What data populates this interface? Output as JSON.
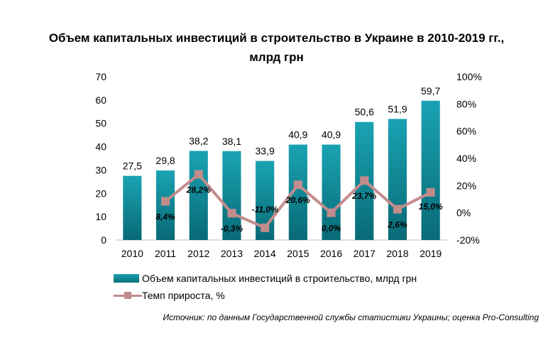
{
  "title": {
    "line1": "Объем капитальных инвестиций в строительство в Украине в 2010-2019 гг.,",
    "line2": "млрд грн"
  },
  "chart_data": {
    "type": "bar",
    "categories": [
      "2010",
      "2011",
      "2012",
      "2013",
      "2014",
      "2015",
      "2016",
      "2017",
      "2018",
      "2019"
    ],
    "series": [
      {
        "name": "Объем капитальных  инвестиций  в строительство, млрд грн",
        "type": "bar",
        "axis": "left",
        "values": [
          27.5,
          29.8,
          38.2,
          38.1,
          33.9,
          40.9,
          40.9,
          50.6,
          51.9,
          59.7
        ],
        "labels": [
          "27,5",
          "29,8",
          "38,2",
          "38,1",
          "33,9",
          "40,9",
          "40,9",
          "50,6",
          "51,9",
          "59,7"
        ],
        "color": "#0f8a98"
      },
      {
        "name": "Темп прироста, %",
        "type": "line",
        "axis": "right",
        "values": [
          8.4,
          28.2,
          -0.3,
          -11.0,
          20.6,
          0.0,
          23.7,
          2.6,
          15.0
        ],
        "x": [
          "2011",
          "2012",
          "2013",
          "2014",
          "2015",
          "2016",
          "2017",
          "2018",
          "2019"
        ],
        "labels": [
          "8,4%",
          "28,2%",
          "-0,3%",
          "-11,0%",
          "20,6%",
          "0,0%",
          "23,7%",
          "2,6%",
          "15,0%"
        ],
        "color": "#c38c8c"
      }
    ],
    "y_left": {
      "min": 0,
      "max": 70,
      "ticks": [
        "0",
        "10",
        "20",
        "30",
        "40",
        "50",
        "60",
        "70"
      ]
    },
    "y_right": {
      "min": -20,
      "max": 100,
      "ticks": [
        "-20%",
        "0%",
        "20%",
        "40%",
        "60%",
        "80%",
        "100%"
      ]
    },
    "grid": false,
    "legend_position": "bottom-left"
  },
  "source": "Источник: по данным Государственной службы статистики Украины; оценка Pro-Consulting"
}
